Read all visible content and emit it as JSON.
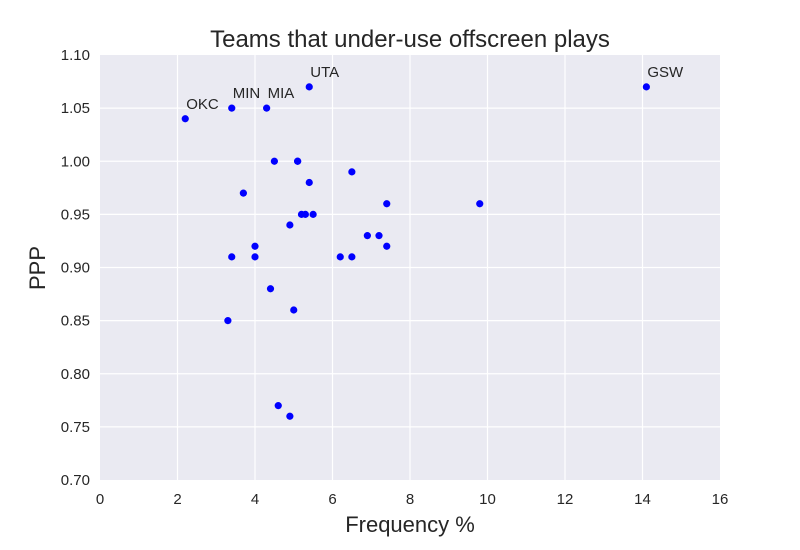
{
  "chart_data": {
    "type": "scatter",
    "title": "Teams that under-use offscreen plays",
    "xlabel": "Frequency %",
    "ylabel": "PPP",
    "xlim": [
      0,
      16
    ],
    "ylim": [
      0.7,
      1.1
    ],
    "xticks": [
      "0",
      "2",
      "4",
      "6",
      "8",
      "10",
      "12",
      "14",
      "16"
    ],
    "yticks": [
      "0.70",
      "0.75",
      "0.80",
      "0.85",
      "0.90",
      "0.95",
      "1.00",
      "1.05",
      "1.10"
    ],
    "grid": true,
    "point_color": "#0000ff",
    "background_color": "#eaeaf2",
    "points": [
      {
        "x": 2.2,
        "y": 1.04,
        "label": "OKC"
      },
      {
        "x": 3.4,
        "y": 1.05,
        "label": "MIN"
      },
      {
        "x": 4.3,
        "y": 1.05,
        "label": "MIA"
      },
      {
        "x": 5.4,
        "y": 1.07,
        "label": "UTA"
      },
      {
        "x": 14.1,
        "y": 1.07,
        "label": "GSW"
      },
      {
        "x": 4.5,
        "y": 1.0
      },
      {
        "x": 5.1,
        "y": 1.0
      },
      {
        "x": 5.1,
        "y": 1.0
      },
      {
        "x": 6.5,
        "y": 0.99
      },
      {
        "x": 5.4,
        "y": 0.98
      },
      {
        "x": 3.7,
        "y": 0.97
      },
      {
        "x": 7.4,
        "y": 0.96
      },
      {
        "x": 9.8,
        "y": 0.96
      },
      {
        "x": 5.2,
        "y": 0.95
      },
      {
        "x": 5.3,
        "y": 0.95
      },
      {
        "x": 5.5,
        "y": 0.95
      },
      {
        "x": 4.9,
        "y": 0.94
      },
      {
        "x": 6.9,
        "y": 0.93
      },
      {
        "x": 7.2,
        "y": 0.93
      },
      {
        "x": 4.0,
        "y": 0.92
      },
      {
        "x": 7.4,
        "y": 0.92
      },
      {
        "x": 3.4,
        "y": 0.91
      },
      {
        "x": 4.0,
        "y": 0.91
      },
      {
        "x": 6.2,
        "y": 0.91
      },
      {
        "x": 6.5,
        "y": 0.91
      },
      {
        "x": 4.4,
        "y": 0.88
      },
      {
        "x": 5.0,
        "y": 0.86
      },
      {
        "x": 3.3,
        "y": 0.85
      },
      {
        "x": 4.6,
        "y": 0.77
      },
      {
        "x": 4.9,
        "y": 0.76
      }
    ]
  }
}
